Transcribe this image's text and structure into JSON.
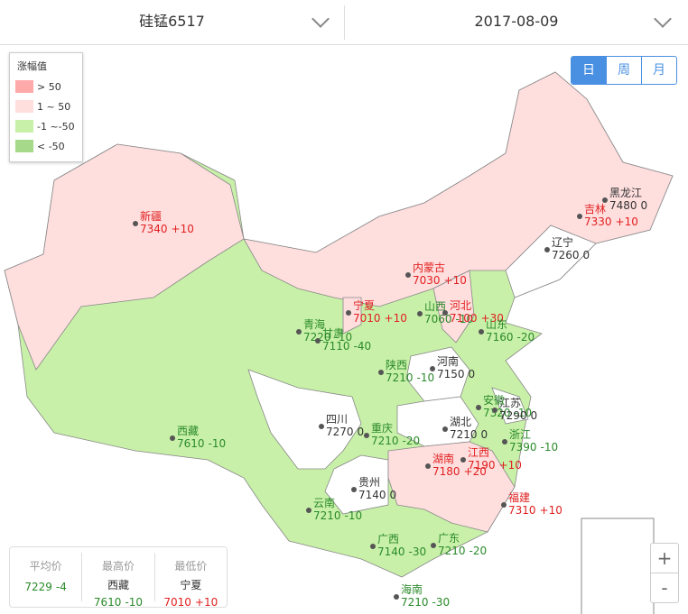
{
  "header": {
    "product": "硅锰6517",
    "date": "2017-08-09"
  },
  "period_buttons": [
    "日",
    "周",
    "月"
  ],
  "legend": {
    "title": "涨幅值",
    "items": [
      {
        "label": "> 50",
        "color": "#ffaaaa"
      },
      {
        "label": "1 ~ 50",
        "color": "#ffdede"
      },
      {
        "label": "-1 ~-50",
        "color": "#c8f0a8"
      },
      {
        "label": "< -50",
        "color": "#a6d98a"
      }
    ]
  },
  "provinces": [
    {
      "name": "新疆",
      "price": 7340,
      "change": "+10"
    },
    {
      "name": "黑龙江",
      "price": 7480,
      "change": "0"
    },
    {
      "name": "吉林",
      "price": 7330,
      "change": "+10"
    },
    {
      "name": "辽宁",
      "price": 7260,
      "change": "0"
    },
    {
      "name": "内蒙古",
      "price": 7030,
      "change": "+10"
    },
    {
      "name": "宁夏",
      "price": 7010,
      "change": "+10"
    },
    {
      "name": "山西",
      "price": 7060,
      "change": "-10"
    },
    {
      "name": "河北",
      "price": 7100,
      "change": "+30"
    },
    {
      "name": "山东",
      "price": 7160,
      "change": "-20"
    },
    {
      "name": "青海",
      "price": 7220,
      "change": "-10"
    },
    {
      "name": "甘肃",
      "price": 7110,
      "change": "-40"
    },
    {
      "name": "陕西",
      "price": 7210,
      "change": "-10"
    },
    {
      "name": "河南",
      "price": 7150,
      "change": "0"
    },
    {
      "name": "西藏",
      "price": 7610,
      "change": "-10"
    },
    {
      "name": "四川",
      "price": 7270,
      "change": "0"
    },
    {
      "name": "重庆",
      "price": 7210,
      "change": "-20"
    },
    {
      "name": "湖北",
      "price": 7210,
      "change": "0"
    },
    {
      "name": "安徽",
      "price": 7320,
      "change": "-10"
    },
    {
      "name": "江苏",
      "price": 7290,
      "change": "0"
    },
    {
      "name": "浙江",
      "price": 7390,
      "change": "-10"
    },
    {
      "name": "江西",
      "price": 7190,
      "change": "+10"
    },
    {
      "name": "湖南",
      "price": 7180,
      "change": "+20"
    },
    {
      "name": "贵州",
      "price": 7140,
      "change": "0"
    },
    {
      "name": "福建",
      "price": 7310,
      "change": "+10"
    },
    {
      "name": "云南",
      "price": 7210,
      "change": "-10"
    },
    {
      "name": "广西",
      "price": 7140,
      "change": "-30"
    },
    {
      "name": "广东",
      "price": 7210,
      "change": "-20"
    },
    {
      "name": "海南",
      "price": 7210,
      "change": "-30"
    }
  ],
  "summary": [
    {
      "label": "平均价",
      "price": 7229,
      "change": "-4"
    },
    {
      "label": "最高价",
      "province": "西藏",
      "price": 7610,
      "change": "-10"
    },
    {
      "label": "最低价",
      "province": "宁夏",
      "price": 7010,
      "change": "+10"
    }
  ],
  "zoom": [
    "+",
    "-"
  ]
}
